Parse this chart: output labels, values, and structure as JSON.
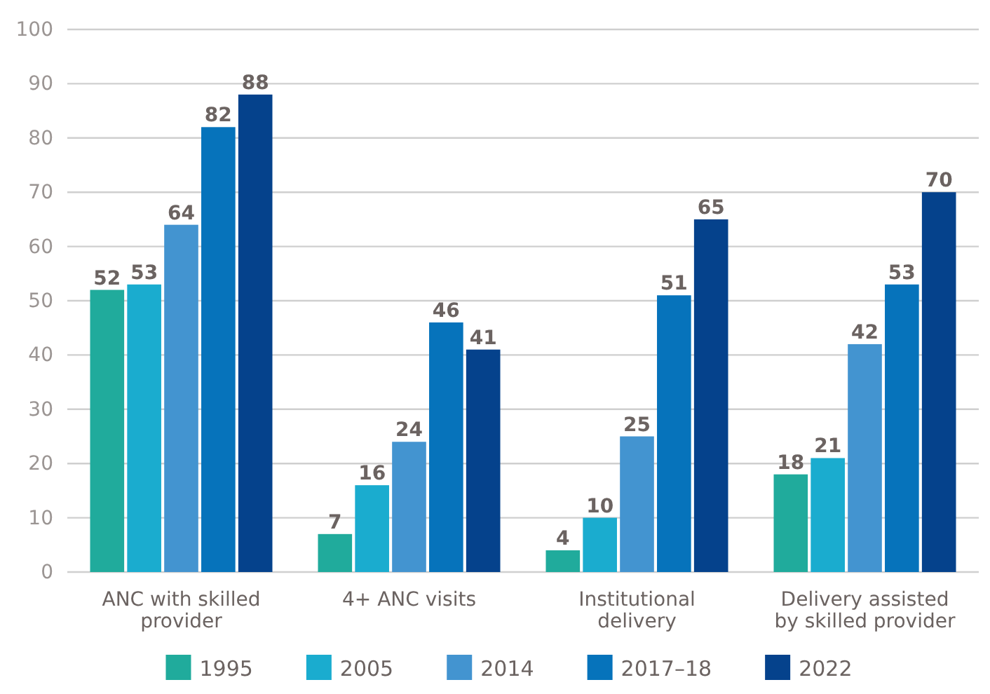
{
  "chart_data": {
    "type": "bar",
    "categories": [
      "ANC with skilled provider",
      "4+ ANC visits",
      "Institutional delivery",
      "Delivery assisted by skilled provider"
    ],
    "series": [
      {
        "name": "1995",
        "color": "#20ab9c",
        "values": [
          52,
          7,
          4,
          18
        ]
      },
      {
        "name": "2005",
        "color": "#1aaccf",
        "values": [
          53,
          16,
          10,
          21
        ]
      },
      {
        "name": "2014",
        "color": "#4394d0",
        "values": [
          64,
          24,
          25,
          42
        ]
      },
      {
        "name": "2017–18",
        "color": "#0673bb",
        "values": [
          82,
          46,
          51,
          53
        ]
      },
      {
        "name": "2022",
        "color": "#05428c",
        "values": [
          88,
          41,
          65,
          70
        ]
      }
    ],
    "ylim": [
      0,
      100
    ],
    "yticks": [
      0,
      10,
      20,
      30,
      40,
      50,
      60,
      70,
      80,
      90,
      100
    ],
    "grid": "y",
    "legend": "bottom",
    "data_labels": true
  }
}
